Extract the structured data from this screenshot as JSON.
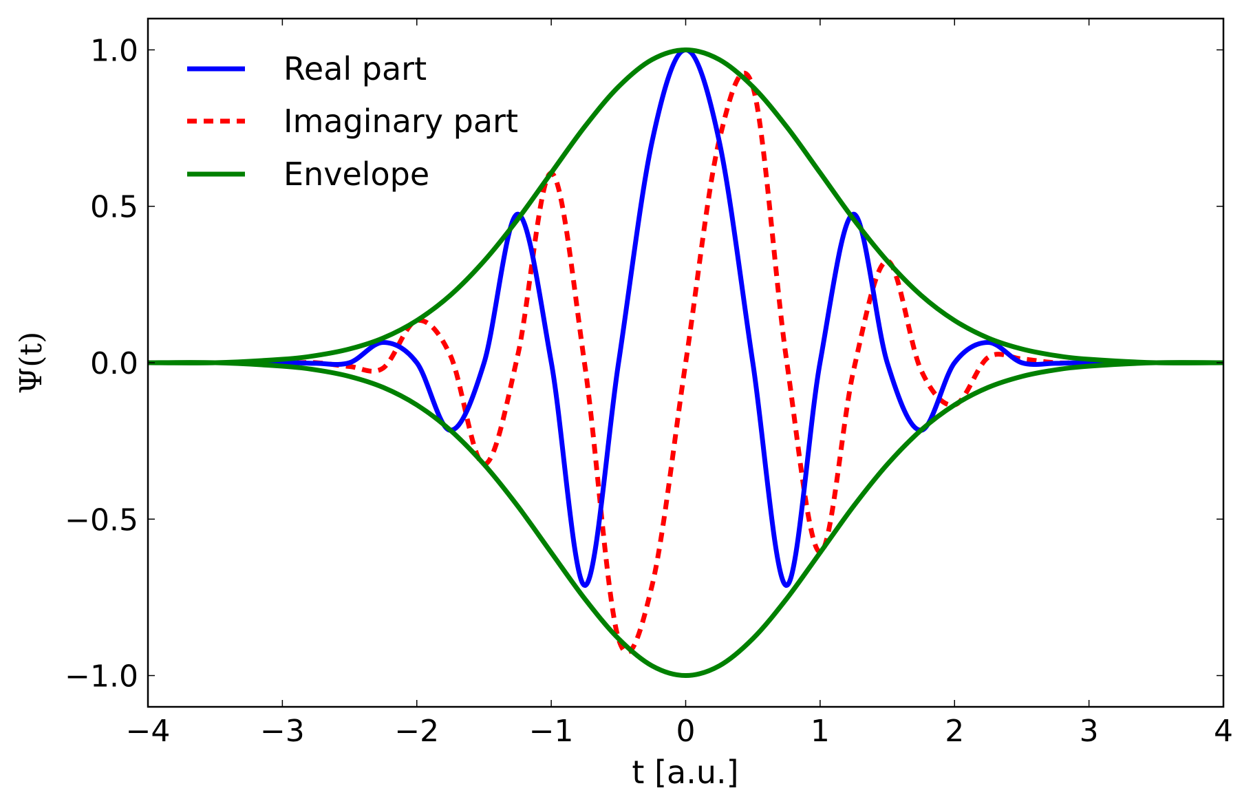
{
  "chart_data": {
    "type": "line",
    "xlabel": "t [a.u.]",
    "ylabel": "Ψ(t)",
    "xlim": [
      -4,
      4
    ],
    "ylim": [
      -1.1,
      1.1
    ],
    "xticks": [
      -4,
      -3,
      -2,
      -1,
      0,
      1,
      2,
      3,
      4
    ],
    "xtick_labels": [
      "−4",
      "−3",
      "−2",
      "−1",
      "0",
      "1",
      "2",
      "3",
      "4"
    ],
    "yticks": [
      1.0,
      0.5,
      0.0,
      -0.5,
      -1.0
    ],
    "ytick_labels": [
      "1.0",
      "0.5",
      "0.0",
      "−0.5",
      "−1.0"
    ],
    "grid": false,
    "legend_position": "top-left",
    "series": [
      {
        "name": "Real part",
        "color": "#0000ff",
        "style": "solid",
        "x": [
          -3.0,
          -2.75,
          -2.5,
          -2.25,
          -2.0,
          -1.75,
          -1.5,
          -1.25,
          -1.0,
          -0.75,
          -0.5,
          -0.25,
          0.0,
          0.25,
          0.5,
          0.75,
          1.0,
          1.25,
          1.5,
          1.75,
          2.0,
          2.25,
          2.5,
          2.75,
          3.0
        ],
        "y": [
          0.0,
          -0.002,
          0.0,
          0.065,
          0.0,
          -0.216,
          -0.001,
          0.475,
          0.002,
          -0.712,
          -0.002,
          0.707,
          1.0,
          0.707,
          -0.002,
          -0.712,
          0.002,
          0.475,
          -0.001,
          -0.216,
          0.0,
          0.065,
          0.0,
          -0.002,
          0.0
        ]
      },
      {
        "name": "Imaginary part",
        "color": "#ff0000",
        "style": "dashed",
        "x": [
          -3.0,
          -2.75,
          -2.5,
          -2.25,
          -2.0,
          -1.75,
          -1.5,
          -1.25,
          -1.0,
          -0.75,
          -0.5,
          -0.25,
          0.0,
          0.25,
          0.5,
          0.75,
          1.0,
          1.25,
          1.5,
          1.75,
          2.0,
          2.25,
          2.5,
          2.75,
          3.0
        ],
        "y": [
          0.0,
          0.0,
          -0.012,
          -0.017,
          0.135,
          0.023,
          -0.325,
          0.022,
          0.606,
          -0.009,
          -0.882,
          -0.712,
          0.0,
          0.712,
          0.882,
          0.009,
          -0.606,
          -0.022,
          0.325,
          -0.023,
          -0.135,
          0.017,
          0.012,
          0.0,
          0.0
        ]
      },
      {
        "name": "Envelope",
        "color": "#008000",
        "style": "solid",
        "x": [
          -4.0,
          -3.5,
          -3.0,
          -2.75,
          -2.5,
          -2.25,
          -2.0,
          -1.75,
          -1.5,
          -1.25,
          -1.0,
          -0.75,
          -0.5,
          -0.25,
          0.0,
          0.25,
          0.5,
          0.75,
          1.0,
          1.25,
          1.5,
          1.75,
          2.0,
          2.25,
          2.5,
          2.75,
          3.0,
          3.5,
          4.0
        ],
        "y": [
          0.0,
          0.0,
          0.011,
          0.023,
          0.044,
          0.079,
          0.135,
          0.216,
          0.325,
          0.458,
          0.607,
          0.755,
          0.882,
          0.969,
          1.0,
          0.969,
          0.882,
          0.755,
          0.607,
          0.458,
          0.325,
          0.216,
          0.135,
          0.079,
          0.044,
          0.023,
          0.011,
          0.0,
          0.0
        ],
        "mirrored_negative": true
      }
    ]
  }
}
